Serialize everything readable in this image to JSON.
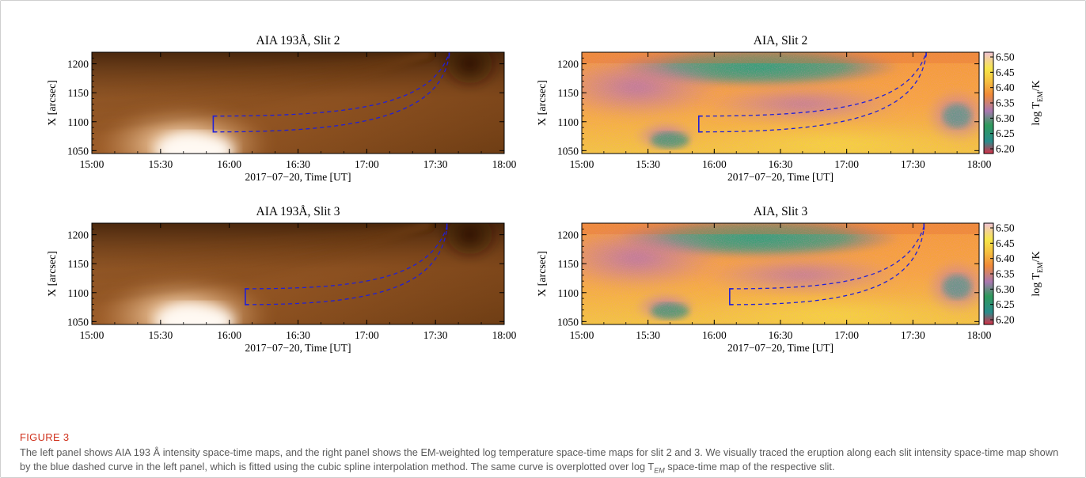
{
  "figure": {
    "label": "FIGURE 3",
    "caption_parts": [
      "The left panel shows AIA 193 Å intensity space-time maps, and the right panel shows the EM-weighted log temperature space-time maps for slit 2 and 3. We visually traced the eruption along each slit intensity space-time map shown by the blue dashed curve in the left panel, which is fitted using the cubic spline interpolation method. The same curve is overplotted over log T",
      "EM",
      " space-time map of the respective slit."
    ]
  },
  "colors": {
    "trace": "#2020d8",
    "intensity_dark": "#3a1a06",
    "intensity_mid": "#a8642c",
    "intensity_bright": "#fff6ec"
  },
  "colorbar": {
    "label_main": "log T",
    "label_sub": "EM",
    "label_unit": "/K",
    "range": [
      6.2,
      6.5
    ],
    "ticks": [
      "6.50",
      "6.45",
      "6.40",
      "6.35",
      "6.30",
      "6.25",
      "6.20"
    ]
  },
  "chart_data": [
    {
      "type": "heatmap",
      "title": "AIA 193Å, Slit 2",
      "xlabel": "2017−07−20, Time [UT]",
      "ylabel": "X [arcsec]",
      "x_ticks": [
        "15:00",
        "15:30",
        "16:00",
        "16:30",
        "17:00",
        "17:30",
        "18:00"
      ],
      "y_ticks": [
        "1200",
        "1150",
        "1100",
        "1050"
      ],
      "xlim": [
        "15:00",
        "18:00"
      ],
      "ylim": [
        1045,
        1220
      ],
      "quantity": "intensity",
      "trace": {
        "start": "15:53",
        "end": "17:36",
        "x_start": 1096,
        "x_end": 1219
      }
    },
    {
      "type": "heatmap",
      "title": "AIA, Slit 2",
      "xlabel": "2017−07−20, Time [UT]",
      "ylabel": "X [arcsec]",
      "x_ticks": [
        "15:00",
        "15:30",
        "16:00",
        "16:30",
        "17:00",
        "17:30",
        "18:00"
      ],
      "y_ticks": [
        "1200",
        "1150",
        "1100",
        "1050"
      ],
      "xlim": [
        "15:00",
        "18:00"
      ],
      "ylim": [
        1045,
        1220
      ],
      "quantity": "log T_EM",
      "trace": {
        "start": "15:53",
        "end": "17:36",
        "x_start": 1096,
        "x_end": 1219
      }
    },
    {
      "type": "heatmap",
      "title": "AIA 193Å, Slit 3",
      "xlabel": "2017−07−20, Time [UT]",
      "ylabel": "X [arcsec]",
      "x_ticks": [
        "15:00",
        "15:30",
        "16:00",
        "16:30",
        "17:00",
        "17:30",
        "18:00"
      ],
      "y_ticks": [
        "1200",
        "1150",
        "1100",
        "1050"
      ],
      "xlim": [
        "15:00",
        "18:00"
      ],
      "ylim": [
        1045,
        1220
      ],
      "quantity": "intensity",
      "trace": {
        "start": "16:07",
        "end": "17:35",
        "x_start": 1093,
        "x_end": 1214
      }
    },
    {
      "type": "heatmap",
      "title": "AIA, Slit 3",
      "xlabel": "2017−07−20, Time [UT]",
      "ylabel": "X [arcsec]",
      "x_ticks": [
        "15:00",
        "15:30",
        "16:00",
        "16:30",
        "17:00",
        "17:30",
        "18:00"
      ],
      "y_ticks": [
        "1200",
        "1150",
        "1100",
        "1050"
      ],
      "xlim": [
        "15:00",
        "18:00"
      ],
      "ylim": [
        1045,
        1220
      ],
      "quantity": "log T_EM",
      "trace": {
        "start": "16:07",
        "end": "17:35",
        "x_start": 1093,
        "x_end": 1214
      }
    }
  ]
}
